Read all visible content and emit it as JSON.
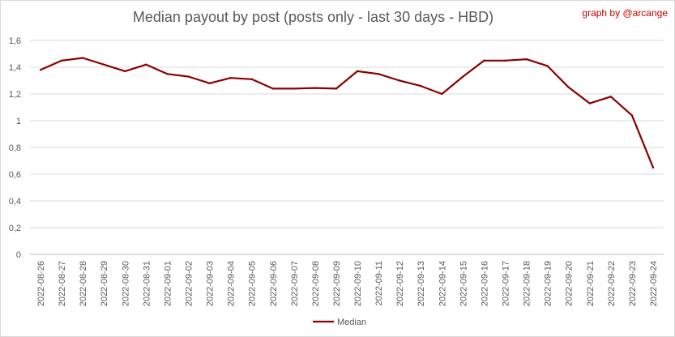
{
  "chart_data": {
    "type": "line",
    "title": "Median payout by post (posts only - last 30 days - HBD)",
    "credit": "graph by @arcange",
    "xlabel": "",
    "ylabel": "",
    "ylim": [
      0,
      1.6
    ],
    "y_ticks": [
      "0",
      "0,2",
      "0,4",
      "0,6",
      "0,8",
      "1",
      "1,2",
      "1,4",
      "1,6"
    ],
    "grid": "horizontal",
    "legend_position": "bottom",
    "categories": [
      "2022-08-26",
      "2022-08-27",
      "2022-08-28",
      "2022-08-29",
      "2022-08-30",
      "2022-08-31",
      "2022-09-01",
      "2022-09-02",
      "2022-09-03",
      "2022-09-04",
      "2022-09-05",
      "2022-09-06",
      "2022-09-07",
      "2022-09-08",
      "2022-09-09",
      "2022-09-10",
      "2022-09-11",
      "2022-09-12",
      "2022-09-13",
      "2022-09-14",
      "2022-09-15",
      "2022-09-16",
      "2022-09-17",
      "2022-09-18",
      "2022-09-19",
      "2022-09-20",
      "2022-09-21",
      "2022-09-22",
      "2022-09-23",
      "2022-09-24"
    ],
    "series": [
      {
        "name": "Median",
        "color": "#8b0000",
        "values": [
          1.38,
          1.45,
          1.47,
          1.42,
          1.37,
          1.42,
          1.35,
          1.33,
          1.28,
          1.32,
          1.31,
          1.24,
          1.24,
          1.245,
          1.24,
          1.37,
          1.35,
          1.3,
          1.26,
          1.2,
          1.33,
          1.45,
          1.45,
          1.46,
          1.41,
          1.25,
          1.13,
          1.18,
          1.04,
          0.65
        ]
      }
    ]
  }
}
